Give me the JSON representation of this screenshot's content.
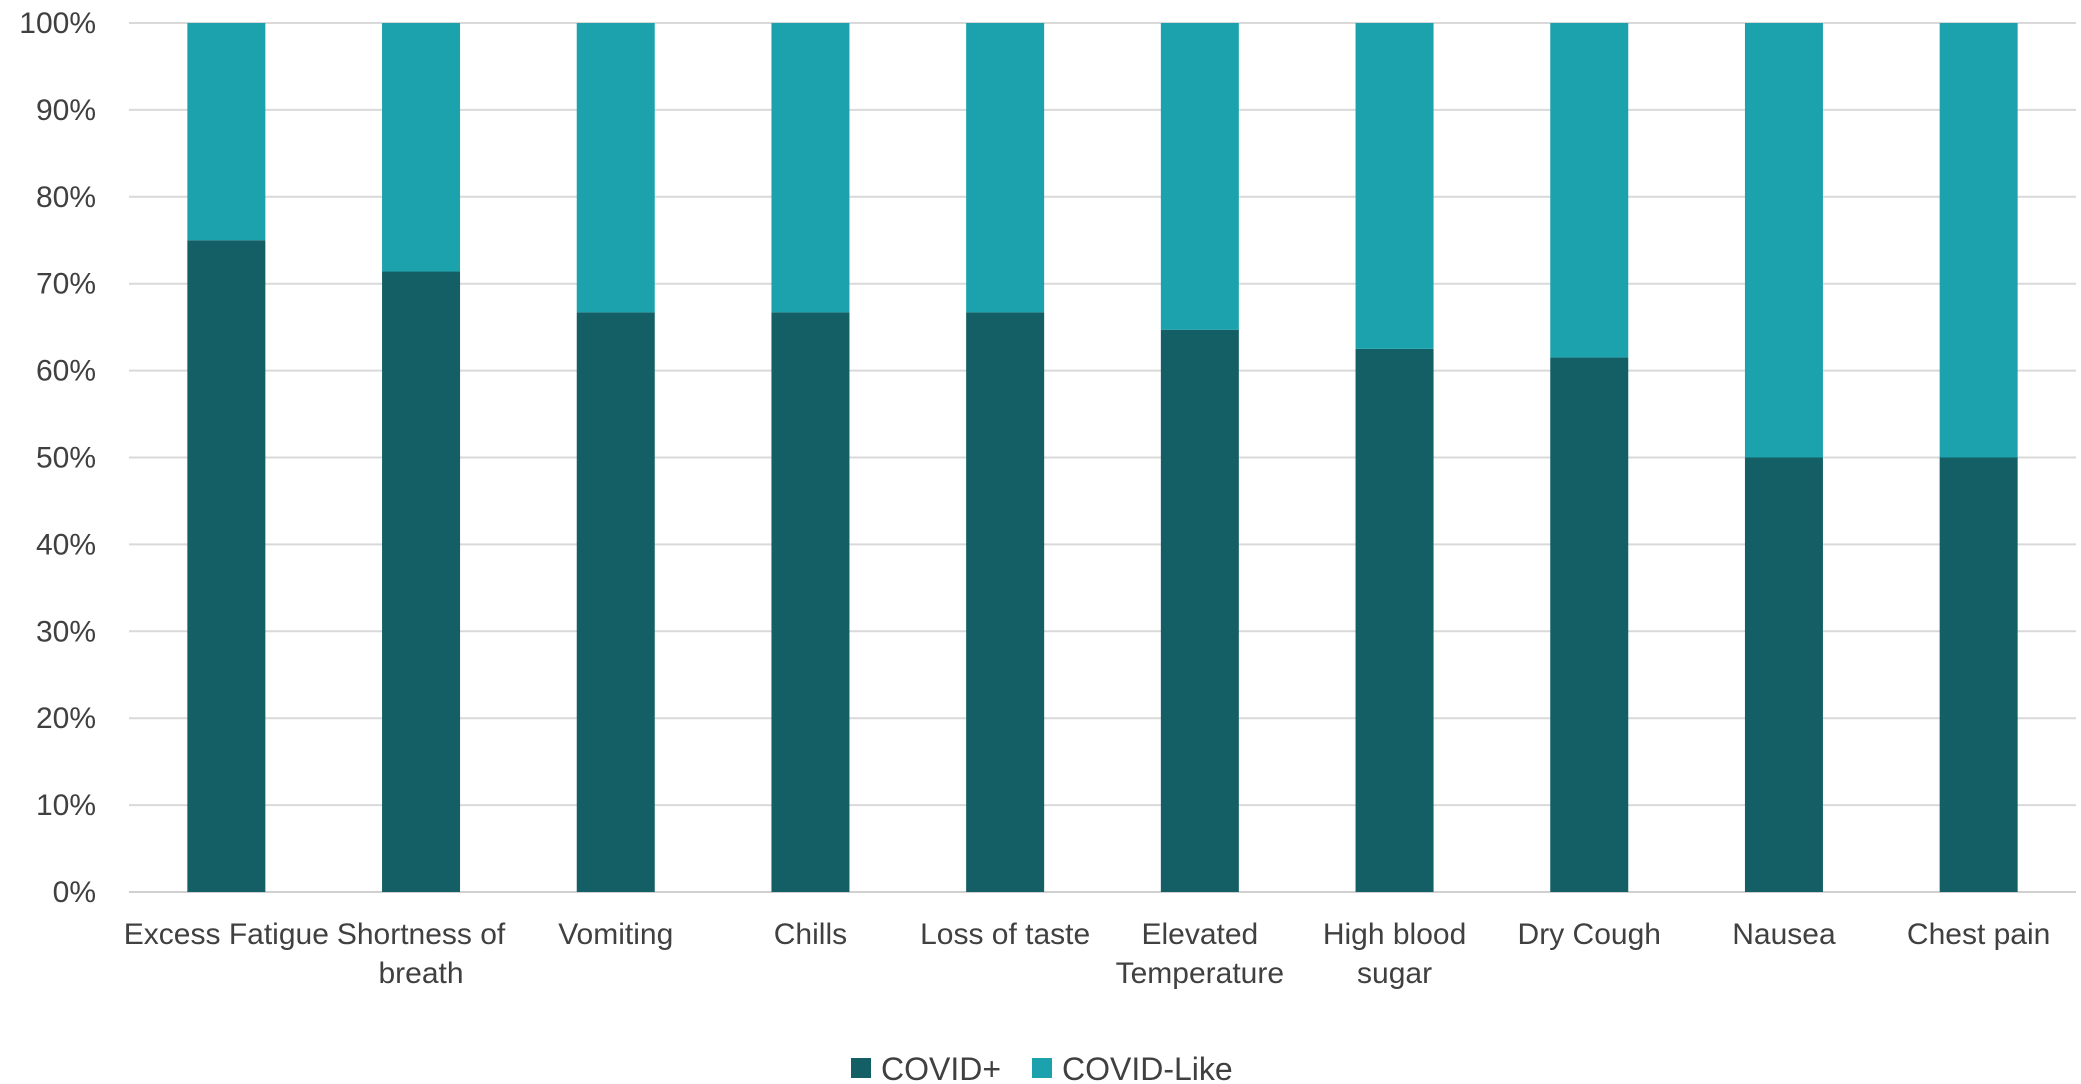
{
  "chart_data": {
    "type": "bar",
    "stacked": true,
    "categories": [
      [
        "Excess Fatigue"
      ],
      [
        "Shortness of",
        "breath"
      ],
      [
        "Vomiting"
      ],
      [
        "Chills"
      ],
      [
        "Loss of taste"
      ],
      [
        "Elevated",
        "Temperature"
      ],
      [
        "High blood",
        "sugar"
      ],
      [
        "Dry Cough"
      ],
      [
        "Nausea"
      ],
      [
        "Chest pain"
      ]
    ],
    "series": [
      {
        "name": "COVID+",
        "color": "#135f65",
        "values": [
          75,
          71.4,
          66.7,
          66.7,
          66.7,
          64.7,
          62.5,
          61.5,
          50,
          50
        ]
      },
      {
        "name": "COVID-Like",
        "color": "#1ca2ac",
        "values": [
          25,
          28.6,
          33.3,
          33.3,
          33.3,
          35.3,
          37.5,
          38.5,
          50,
          50
        ]
      }
    ],
    "yticks": [
      "0%",
      "10%",
      "20%",
      "30%",
      "40%",
      "50%",
      "60%",
      "70%",
      "80%",
      "90%",
      "100%"
    ],
    "ylim": [
      0,
      100
    ],
    "grid": true,
    "legend_position": "bottom",
    "title": "",
    "xlabel": "",
    "ylabel": ""
  }
}
